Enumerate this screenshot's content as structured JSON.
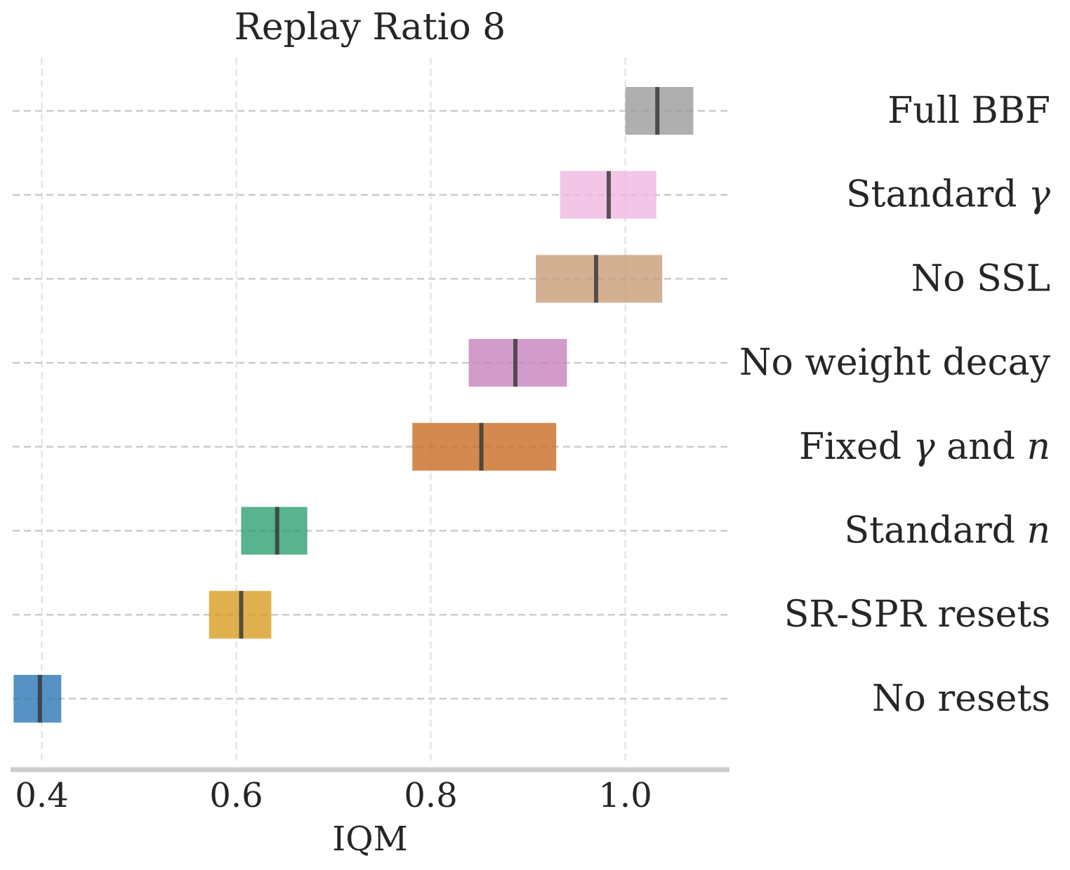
{
  "chart_data": {
    "type": "interval",
    "title": "Replay Ratio 8",
    "xlabel": "IQM",
    "xlim": [
      0.37,
      1.105
    ],
    "xticks": [
      0.4,
      0.6,
      0.8,
      1.0
    ],
    "xtick_labels": [
      "0.4",
      "0.6",
      "0.8",
      "1.0"
    ],
    "grid": true,
    "categories": [
      {
        "label_parts": [
          {
            "t": "Full BBF",
            "i": false
          }
        ],
        "low": 1.0,
        "high": 1.07,
        "point": 1.033,
        "color": "#999999"
      },
      {
        "label_parts": [
          {
            "t": "Standard ",
            "i": false
          },
          {
            "t": "γ",
            "i": true
          }
        ],
        "low": 0.933,
        "high": 1.032,
        "point": 0.983,
        "color": "#f0b6e0"
      },
      {
        "label_parts": [
          {
            "t": "No SSL",
            "i": false
          }
        ],
        "low": 0.908,
        "high": 1.038,
        "point": 0.97,
        "color": "#c89a74"
      },
      {
        "label_parts": [
          {
            "t": "No weight decay",
            "i": false
          }
        ],
        "low": 0.839,
        "high": 0.94,
        "point": 0.887,
        "color": "#c47fba"
      },
      {
        "label_parts": [
          {
            "t": "Fixed ",
            "i": false
          },
          {
            "t": "γ",
            "i": true
          },
          {
            "t": " and ",
            "i": false
          },
          {
            "t": "n",
            "i": true
          }
        ],
        "low": 0.781,
        "high": 0.929,
        "point": 0.852,
        "color": "#c8691e"
      },
      {
        "label_parts": [
          {
            "t": "Standard ",
            "i": false
          },
          {
            "t": "n",
            "i": true
          }
        ],
        "low": 0.605,
        "high": 0.673,
        "point": 0.642,
        "color": "#2a9d6e"
      },
      {
        "label_parts": [
          {
            "t": "SR-SPR resets",
            "i": false
          }
        ],
        "low": 0.572,
        "high": 0.636,
        "point": 0.605,
        "color": "#d99a1c"
      },
      {
        "label_parts": [
          {
            "t": "No resets",
            "i": false
          }
        ],
        "low": 0.371,
        "high": 0.42,
        "point": 0.398,
        "color": "#2674b4"
      }
    ]
  }
}
